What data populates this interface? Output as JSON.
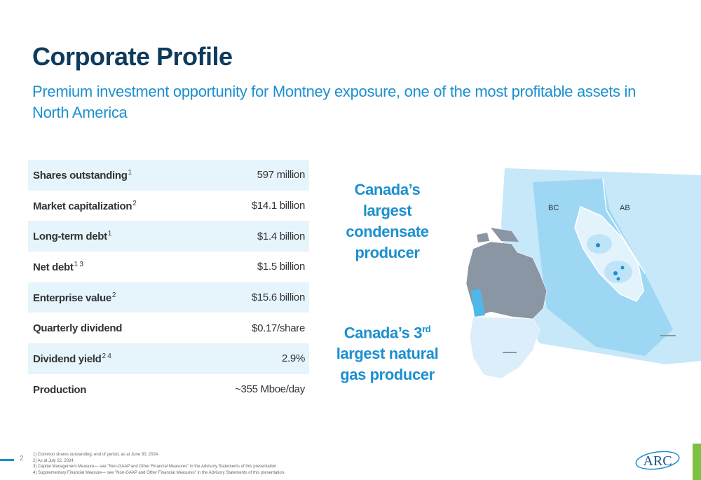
{
  "header": {
    "title": "Corporate Profile",
    "subtitle": "Premium investment opportunity for Montney exposure, one of the most profitable assets in North America"
  },
  "profile_table": [
    {
      "label": "Shares outstanding",
      "sup": "1",
      "value": "597 million"
    },
    {
      "label": "Market capitalization",
      "sup": "2",
      "value": "$14.1 billion"
    },
    {
      "label": "Long-term debt",
      "sup": "1",
      "value": "$1.4 billion"
    },
    {
      "label": "Net debt",
      "sup": "1 3",
      "value": "$1.5 billion"
    },
    {
      "label": "Enterprise value",
      "sup": "2",
      "value": "$15.6 billion"
    },
    {
      "label": "Quarterly dividend",
      "sup": "",
      "value": "$0.17/share"
    },
    {
      "label": "Dividend yield",
      "sup": "2 4",
      "value": "2.9%"
    },
    {
      "label": "Production",
      "sup": "",
      "value": "~355 Mboe/day"
    }
  ],
  "callouts": {
    "condensate": "Canada’s largest condensate producer",
    "gas_prefix": "Canada’s 3",
    "gas_sup": "rd",
    "gas_suffix": "largest natural gas producer"
  },
  "map": {
    "label_bc": "BC",
    "label_ab": "AB",
    "colors": {
      "light_blue": "#bfe3f7",
      "mid_blue": "#7fcaf0",
      "grey": "#8a96a3",
      "dark_grey": "#6b7785"
    }
  },
  "footer": {
    "page_number": "2",
    "footnotes": [
      "1)  Common shares outstanding, end of period, as at June 30, 2024.",
      "2)  As at July 22, 2024.",
      "3)  Capital Management Measure— see \"Non-GAAP and Other Financial Measures\" in the Advisory Statements of this presentation.",
      "4)  Supplementary Financial Measure— see \"Non-GAAP and Other Financial Measures\" in the Advisory Statements of this presentation."
    ],
    "logo_text": "ARC",
    "colors": {
      "accent_green": "#7cc242",
      "accent_blue": "#1b8fd0"
    }
  }
}
